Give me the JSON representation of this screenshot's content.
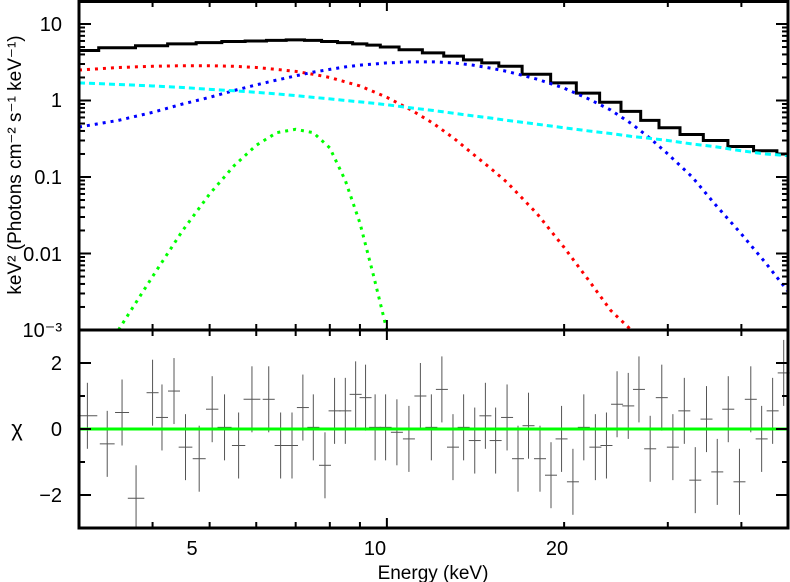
{
  "chart_data": [
    {
      "panel": "upper",
      "type": "line",
      "title": "",
      "xlabel": "",
      "ylabel": "keV² (Photons cm⁻² s⁻¹ keV⁻¹)",
      "xscale": "log",
      "yscale": "log",
      "xlim": [
        3.0,
        48.0
      ],
      "ylim": [
        0.001,
        20
      ],
      "y_tick_labels": [
        "10",
        "1",
        "0.1",
        "0.01",
        "10⁻³"
      ],
      "y_ticks": [
        10,
        1,
        0.1,
        0.01,
        0.001
      ],
      "x": [
        3.0,
        3.5,
        4,
        4.5,
        5,
        5.5,
        6,
        6.5,
        7,
        7.5,
        8,
        8.5,
        9,
        9.5,
        10,
        11,
        12,
        13,
        14,
        15,
        16,
        18,
        20,
        22,
        24,
        26,
        28,
        30,
        33,
        36,
        40,
        44,
        48
      ],
      "series": [
        {
          "name": "total model + data",
          "color": "#000000",
          "style": "histogram",
          "values": [
            4.5,
            4.9,
            5.2,
            5.5,
            5.7,
            5.9,
            6.0,
            6.1,
            6.2,
            6.1,
            5.9,
            5.7,
            5.5,
            5.3,
            5.0,
            4.6,
            4.2,
            3.8,
            3.4,
            3.1,
            2.8,
            2.2,
            1.7,
            1.25,
            0.95,
            0.72,
            0.55,
            0.44,
            0.36,
            0.3,
            0.25,
            0.22,
            0.2
          ]
        },
        {
          "name": "component 1 (red)",
          "color": "#ff0000",
          "style": "dotted",
          "values": [
            2.5,
            2.7,
            2.8,
            2.85,
            2.85,
            2.8,
            2.7,
            2.55,
            2.4,
            2.2,
            2.0,
            1.75,
            1.55,
            1.3,
            1.1,
            0.75,
            0.5,
            0.32,
            0.2,
            0.13,
            0.085,
            0.033,
            0.012,
            0.0045,
            0.0018,
            0.001,
            null,
            null,
            null,
            null,
            null,
            null,
            null
          ]
        },
        {
          "name": "component 2 (blue)",
          "color": "#0000ff",
          "style": "dotted",
          "values": [
            0.45,
            0.55,
            0.7,
            0.9,
            1.1,
            1.35,
            1.6,
            1.85,
            2.1,
            2.35,
            2.55,
            2.75,
            2.9,
            3.0,
            3.1,
            3.2,
            3.2,
            3.1,
            2.9,
            2.65,
            2.4,
            1.9,
            1.45,
            1.05,
            0.75,
            0.5,
            0.32,
            0.2,
            0.1,
            0.045,
            0.018,
            0.0075,
            0.0032
          ]
        },
        {
          "name": "component 3 (cyan)",
          "color": "#00ffff",
          "style": "dashed",
          "values": [
            1.7,
            1.62,
            1.55,
            1.48,
            1.4,
            1.34,
            1.28,
            1.22,
            1.16,
            1.1,
            1.05,
            1.0,
            0.96,
            0.92,
            0.88,
            0.8,
            0.74,
            0.68,
            0.63,
            0.59,
            0.55,
            0.49,
            0.44,
            0.4,
            0.37,
            0.34,
            0.32,
            0.3,
            0.27,
            0.25,
            0.22,
            0.2,
            0.19
          ]
        },
        {
          "name": "component 4 (green, Gaussian line)",
          "color": "#00ff00",
          "style": "dotted",
          "x": [
            3.5,
            4,
            4.5,
            5,
            5.5,
            6,
            6.5,
            7,
            7.5,
            8,
            8.5,
            9,
            9.5,
            10
          ],
          "values": [
            0.001,
            0.005,
            0.02,
            0.06,
            0.14,
            0.26,
            0.38,
            0.42,
            0.38,
            0.24,
            0.09,
            0.025,
            0.005,
            0.001
          ]
        }
      ]
    },
    {
      "panel": "lower",
      "type": "scatter",
      "title": "",
      "xlabel": "Energy (keV)",
      "ylabel": "χ",
      "xscale": "log",
      "xlim": [
        3.0,
        48.0
      ],
      "ylim": [
        -3,
        3
      ],
      "x_tick_labels": [
        "5",
        "10",
        "20"
      ],
      "x_ticks": [
        5,
        10,
        20
      ],
      "y_tick_labels": [
        "2",
        "0",
        "−2"
      ],
      "y_ticks": [
        2,
        0,
        -2
      ],
      "reference_line": {
        "y": 0,
        "color": "#00ff00"
      },
      "series": [
        {
          "name": "residuals",
          "color": "#000000",
          "x": [
            3.1,
            3.35,
            3.55,
            3.75,
            4.0,
            4.15,
            4.35,
            4.55,
            4.8,
            5.05,
            5.3,
            5.6,
            5.9,
            6.3,
            6.6,
            6.9,
            7.2,
            7.5,
            7.85,
            8.15,
            8.5,
            8.85,
            9.2,
            9.55,
            9.95,
            10.4,
            10.9,
            11.4,
            11.9,
            12.4,
            12.95,
            13.5,
            14.1,
            14.7,
            15.3,
            16.0,
            16.7,
            17.4,
            18.2,
            19.0,
            19.8,
            20.7,
            21.6,
            22.6,
            23.6,
            24.6,
            25.7,
            26.8,
            28.0,
            29.3,
            30.6,
            32.0,
            33.4,
            34.9,
            36.4,
            38.0,
            39.7,
            41.5,
            43.3,
            45.2,
            47.2
          ],
          "y": [
            0.4,
            -0.45,
            0.5,
            -2.1,
            1.1,
            0.35,
            1.15,
            -0.55,
            -0.9,
            0.6,
            0.05,
            -0.5,
            0.9,
            0.9,
            -0.5,
            -0.5,
            0.65,
            0.05,
            -1.1,
            0.55,
            0.55,
            1.05,
            0.95,
            0.05,
            0.05,
            -0.1,
            -0.3,
            1.0,
            0.05,
            1.2,
            -0.55,
            0.05,
            -0.35,
            0.4,
            -0.35,
            0.35,
            -0.9,
            0.1,
            -0.9,
            -1.4,
            -0.3,
            -1.6,
            0.05,
            -0.55,
            -0.5,
            0.75,
            0.7,
            1.2,
            -0.6,
            0.95,
            -0.55,
            0.55,
            -1.55,
            0.3,
            -1.3,
            0.6,
            -1.6,
            0.9,
            -0.3,
            0.55,
            1.7
          ],
          "yerr": 1.0
        }
      ]
    }
  ],
  "axes": {
    "upper_ylabel": "keV² (Photons cm⁻² s⁻¹ keV⁻¹)",
    "lower_ylabel": "χ",
    "xlabel": "Energy (keV)",
    "upper_yticks": [
      "10",
      "1",
      "0.1",
      "0.01",
      "10⁻³"
    ],
    "lower_yticks": [
      "2",
      "0",
      "−2"
    ],
    "xticks": [
      "5",
      "10",
      "20"
    ]
  },
  "colors": {
    "total": "#000000",
    "red": "#ff0000",
    "blue": "#0000ff",
    "cyan": "#00ffff",
    "green": "#00ff00",
    "residual": "#000000"
  }
}
